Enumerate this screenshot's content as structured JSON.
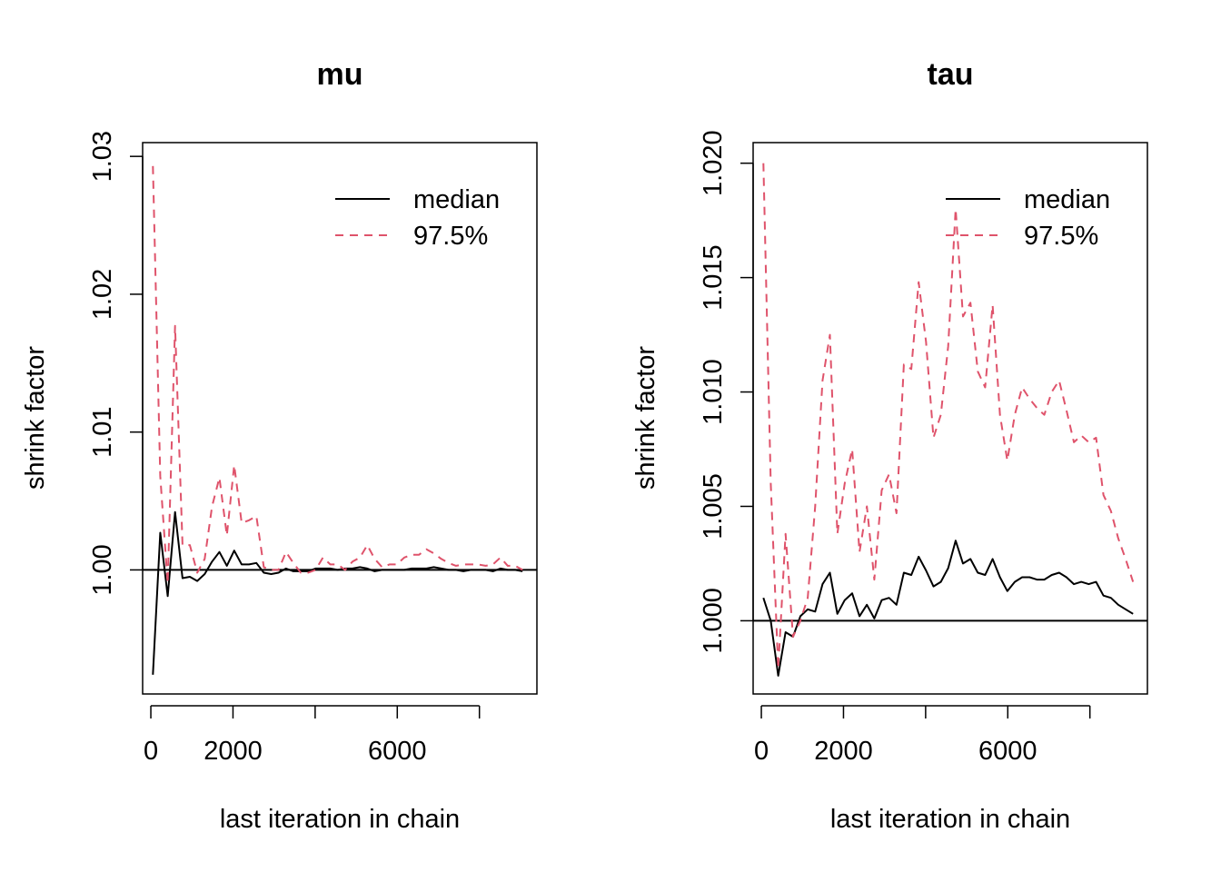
{
  "colors": {
    "median": "#000000",
    "upper": "#DF536B",
    "reference": "#000000"
  },
  "chart_data": [
    {
      "type": "line",
      "title": "mu",
      "xlabel": "last iteration in chain",
      "ylabel": "shrink factor",
      "xlim": [
        -200,
        9400
      ],
      "ylim": [
        0.991,
        1.031
      ],
      "xticks": [
        0,
        2000,
        4000,
        6000,
        8000
      ],
      "xtick_labels": [
        "0",
        "2000",
        "",
        "6000",
        ""
      ],
      "yticks": [
        1.0,
        1.01,
        1.02,
        1.03
      ],
      "ytick_labels": [
        "1.00",
        "1.01",
        "1.02",
        "1.03"
      ],
      "reference_line": 1.0,
      "legend": {
        "position": "top-right",
        "entries": [
          "median",
          "97.5%"
        ]
      },
      "series": [
        {
          "name": "median",
          "style": "solid",
          "x": [
            50,
            230,
            410,
            590,
            770,
            950,
            1130,
            1310,
            1490,
            1670,
            1850,
            2030,
            2210,
            2390,
            2570,
            2750,
            2930,
            3110,
            3290,
            3470,
            3650,
            3830,
            4010,
            4190,
            4370,
            4550,
            4730,
            4910,
            5090,
            5270,
            5450,
            5630,
            5810,
            5990,
            6170,
            6350,
            6530,
            6710,
            6890,
            7070,
            7250,
            7430,
            7610,
            7790,
            7970,
            8150,
            8330,
            8510,
            8690,
            8870,
            9050
          ],
          "y": [
            0.9924,
            1.0027,
            0.9981,
            1.0042,
            0.9994,
            0.9995,
            0.9992,
            0.9997,
            1.0006,
            1.0013,
            1.0003,
            1.0014,
            1.0004,
            1.0004,
            1.0005,
            0.9998,
            0.9997,
            0.9998,
            1.0001,
            0.9999,
            0.9999,
            0.9999,
            1.0001,
            1.0001,
            1.0001,
            1.0,
            1.0001,
            1.0001,
            1.0002,
            1.0001,
            0.9999,
            1.0,
            1.0,
            1.0,
            1.0,
            1.0001,
            1.0001,
            1.0001,
            1.0002,
            1.0001,
            1.0,
            1.0,
            0.9999,
            1.0,
            1.0,
            1.0,
            0.9999,
            1.0001,
            1.0,
            1.0,
            0.9999
          ]
        },
        {
          "name": "97.5%",
          "style": "dashed",
          "x": [
            50,
            230,
            410,
            590,
            770,
            950,
            1130,
            1310,
            1490,
            1670,
            1850,
            2030,
            2210,
            2390,
            2570,
            2750,
            2930,
            3110,
            3290,
            3470,
            3650,
            3830,
            4010,
            4190,
            4370,
            4550,
            4730,
            4910,
            5090,
            5270,
            5450,
            5630,
            5810,
            5990,
            6170,
            6350,
            6530,
            6710,
            6890,
            7070,
            7250,
            7430,
            7610,
            7790,
            7970,
            8150,
            8330,
            8510,
            8690,
            8870,
            9050
          ],
          "y": [
            1.0293,
            1.0068,
            0.999,
            1.0177,
            1.0018,
            1.0018,
            0.9998,
            1.0008,
            1.0046,
            1.0067,
            1.0025,
            1.0076,
            1.0034,
            1.0036,
            1.0039,
            1.0002,
            1.0,
            1.0,
            1.0013,
            1.0005,
            0.9998,
            0.9998,
            1.0,
            1.0009,
            1.0004,
            1.0004,
            1.0,
            1.0006,
            1.0009,
            1.0018,
            1.0008,
            1.0002,
            1.0004,
            1.0004,
            1.0009,
            1.0011,
            1.0011,
            1.0015,
            1.0012,
            1.0008,
            1.0005,
            1.0003,
            1.0004,
            1.0004,
            1.0004,
            1.0003,
            1.0004,
            1.0009,
            1.0003,
            1.0003,
            1.0
          ]
        }
      ]
    },
    {
      "type": "line",
      "title": "tau",
      "xlabel": "last iteration in chain",
      "ylabel": "shrink factor",
      "xlim": [
        -200,
        9400
      ],
      "ylim": [
        0.9968,
        1.0209
      ],
      "xticks": [
        0,
        2000,
        4000,
        6000,
        8000
      ],
      "xtick_labels": [
        "0",
        "2000",
        "",
        "6000",
        ""
      ],
      "yticks": [
        1.0,
        1.005,
        1.01,
        1.015,
        1.02
      ],
      "ytick_labels": [
        "1.000",
        "1.005",
        "1.010",
        "1.015",
        "1.020"
      ],
      "reference_line": 1.0,
      "legend": {
        "position": "top-right",
        "entries": [
          "median",
          "97.5%"
        ]
      },
      "series": [
        {
          "name": "median",
          "style": "solid",
          "x": [
            50,
            230,
            410,
            590,
            770,
            950,
            1130,
            1310,
            1490,
            1670,
            1850,
            2030,
            2210,
            2390,
            2570,
            2750,
            2930,
            3110,
            3290,
            3470,
            3650,
            3830,
            4010,
            4190,
            4370,
            4550,
            4730,
            4910,
            5090,
            5270,
            5450,
            5630,
            5810,
            5990,
            6170,
            6350,
            6530,
            6710,
            6890,
            7070,
            7250,
            7430,
            7610,
            7790,
            7970,
            8150,
            8330,
            8510,
            8690,
            8870,
            9050
          ],
          "y": [
            1.001,
            1.0,
            0.9976,
            0.9995,
            0.9993,
            1.0002,
            1.0005,
            1.0004,
            1.0016,
            1.0021,
            1.0003,
            1.0009,
            1.0012,
            1.0002,
            1.0007,
            1.0001,
            1.0009,
            1.001,
            1.0007,
            1.0021,
            1.002,
            1.0028,
            1.0022,
            1.0015,
            1.0017,
            1.0023,
            1.0035,
            1.0025,
            1.0027,
            1.0021,
            1.002,
            1.0027,
            1.0019,
            1.0013,
            1.0017,
            1.0019,
            1.0019,
            1.0018,
            1.0018,
            1.002,
            1.0021,
            1.0019,
            1.0016,
            1.0017,
            1.0016,
            1.0017,
            1.0011,
            1.001,
            1.0007,
            1.0005,
            1.0003
          ]
        },
        {
          "name": "97.5%",
          "style": "dashed",
          "x": [
            50,
            230,
            410,
            590,
            770,
            950,
            1130,
            1310,
            1490,
            1670,
            1850,
            2030,
            2210,
            2390,
            2570,
            2750,
            2930,
            3110,
            3290,
            3470,
            3650,
            3830,
            4010,
            4190,
            4370,
            4550,
            4730,
            4910,
            5090,
            5270,
            5450,
            5630,
            5810,
            5990,
            6170,
            6350,
            6530,
            6710,
            6890,
            7070,
            7250,
            7430,
            7610,
            7790,
            7970,
            8150,
            8330,
            8510,
            8690,
            8870,
            9050
          ],
          "y": [
            1.02,
            1.006,
            0.9979,
            1.0038,
            0.9993,
            1.0,
            1.001,
            1.005,
            1.0105,
            1.0125,
            1.0038,
            1.006,
            1.0075,
            1.003,
            1.005,
            1.0018,
            1.0057,
            1.0064,
            1.0047,
            1.0112,
            1.011,
            1.0148,
            1.0122,
            1.008,
            1.009,
            1.012,
            1.018,
            1.0133,
            1.0139,
            1.0109,
            1.0102,
            1.0138,
            1.009,
            1.007,
            1.009,
            1.0102,
            1.0097,
            1.0093,
            1.009,
            1.01,
            1.0105,
            1.0092,
            1.0078,
            1.0081,
            1.0078,
            1.008,
            1.0055,
            1.0048,
            1.0036,
            1.0027,
            1.0017
          ]
        }
      ]
    }
  ]
}
